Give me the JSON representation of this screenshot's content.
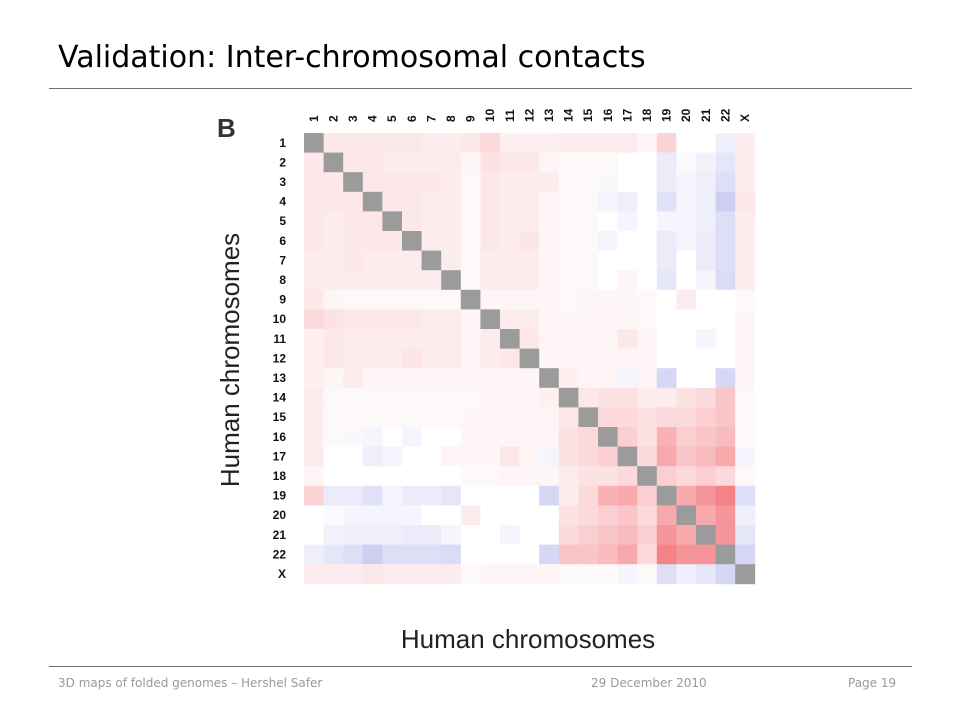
{
  "slide": {
    "title": "Validation: Inter-chromosomal contacts",
    "footer_left": "3D maps of folded genomes – Hershel Safer",
    "footer_center": "29 December 2010",
    "footer_right": "Page 19"
  },
  "chart_data": {
    "type": "heatmap",
    "panel_label": "B",
    "xlabel": "Human chromosomes",
    "ylabel": "Human chromosomes",
    "categories": [
      "1",
      "2",
      "3",
      "4",
      "5",
      "6",
      "7",
      "8",
      "9",
      "10",
      "11",
      "12",
      "13",
      "14",
      "15",
      "16",
      "17",
      "18",
      "19",
      "20",
      "21",
      "22",
      "X"
    ],
    "color_scale": {
      "negative": "#5a5ad8",
      "positive": "#ee3f46",
      "neutral": "#ffffff",
      "diagonal": "#9b9b9b"
    },
    "diagonal_value": null,
    "lower_triangle_values": [
      [],
      [
        0.12
      ],
      [
        0.12,
        0.12
      ],
      [
        0.12,
        0.12,
        0.12
      ],
      [
        0.12,
        0.1,
        0.12,
        0.12
      ],
      [
        0.12,
        0.1,
        0.12,
        0.12,
        0.12
      ],
      [
        0.1,
        0.1,
        0.12,
        0.1,
        0.1,
        0.1
      ],
      [
        0.1,
        0.1,
        0.1,
        0.1,
        0.1,
        0.1,
        0.1
      ],
      [
        0.12,
        0.05,
        0.03,
        0.03,
        0.03,
        0.03,
        0.03,
        0.03
      ],
      [
        0.2,
        0.15,
        0.12,
        0.12,
        0.12,
        0.12,
        0.1,
        0.1,
        0.05
      ],
      [
        0.08,
        0.12,
        0.1,
        0.1,
        0.1,
        0.1,
        0.1,
        0.1,
        0.05,
        0.1
      ],
      [
        0.08,
        0.12,
        0.1,
        0.1,
        0.1,
        0.14,
        0.1,
        0.1,
        0.05,
        0.1,
        0.12
      ],
      [
        0.08,
        0.05,
        0.1,
        0.05,
        0.05,
        0.05,
        0.05,
        0.05,
        0.05,
        0.05,
        0.05,
        0.05
      ],
      [
        0.1,
        0.03,
        0.03,
        0.03,
        0.03,
        0.03,
        0.03,
        0.03,
        0.03,
        0.05,
        0.05,
        0.05,
        0.08
      ],
      [
        0.1,
        0.03,
        0.03,
        0.03,
        0.03,
        0.03,
        0.03,
        0.03,
        0.05,
        0.05,
        0.05,
        0.05,
        0.05,
        0.12
      ],
      [
        0.1,
        0.03,
        -0.04,
        -0.06,
        0,
        -0.06,
        0,
        0,
        0.05,
        0.05,
        0.05,
        0.05,
        0.05,
        0.15,
        0.2
      ],
      [
        0.1,
        0,
        0,
        -0.1,
        -0.06,
        0,
        0,
        0.05,
        0.05,
        0.05,
        0.12,
        0.05,
        -0.06,
        0.15,
        0.2,
        0.25
      ],
      [
        0.05,
        0,
        0,
        0,
        0,
        0,
        0,
        0,
        0.03,
        0.03,
        0.05,
        0.05,
        0.05,
        0.1,
        0.15,
        0.15,
        0.2
      ],
      [
        0.22,
        -0.12,
        -0.12,
        -0.18,
        -0.06,
        -0.12,
        -0.12,
        -0.15,
        0,
        0,
        0,
        0,
        -0.25,
        0.1,
        0.2,
        0.4,
        0.45,
        0.25
      ],
      [
        0,
        -0.03,
        -0.06,
        -0.06,
        -0.06,
        -0.06,
        0,
        0,
        0.1,
        0,
        0,
        0,
        0,
        0.15,
        0.2,
        0.25,
        0.3,
        0.2,
        0.45
      ],
      [
        0,
        -0.08,
        -0.1,
        -0.1,
        -0.1,
        -0.12,
        -0.12,
        -0.06,
        0,
        0,
        -0.06,
        0,
        0,
        0.2,
        0.25,
        0.3,
        0.35,
        0.25,
        0.55,
        0.45
      ],
      [
        -0.1,
        -0.15,
        -0.2,
        -0.3,
        -0.2,
        -0.2,
        -0.2,
        -0.22,
        0,
        0,
        0,
        0,
        -0.25,
        0.3,
        0.3,
        0.35,
        0.45,
        0.2,
        0.65,
        0.55,
        0.55
      ],
      [
        0.1,
        0.1,
        0.1,
        0.12,
        0.1,
        0.1,
        0.1,
        0.1,
        0.03,
        0.05,
        0.05,
        0.05,
        0.05,
        0.03,
        0.03,
        0.03,
        -0.06,
        0.03,
        -0.2,
        -0.1,
        -0.15,
        -0.25
      ]
    ]
  }
}
